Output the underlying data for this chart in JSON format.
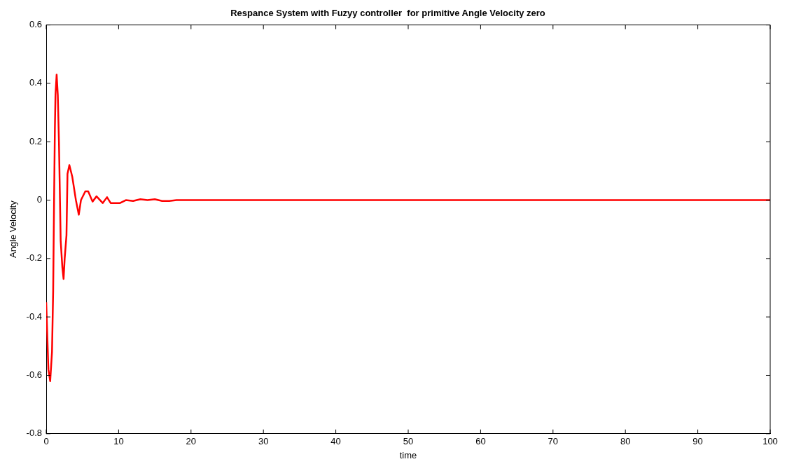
{
  "chart_data": {
    "type": "line",
    "title": "Respance System with Fuzyy controller  for primitive Angle Velocity zero",
    "xlabel": "time",
    "ylabel": "Angle Velocity",
    "x": [
      0,
      0.3,
      0.55,
      0.8,
      0.96,
      1.1,
      1.2,
      1.28,
      1.44,
      1.6,
      1.76,
      2.0,
      2.23,
      2.4,
      2.55,
      2.8,
      2.94,
      3.2,
      3.6,
      4.1,
      4.5,
      4.8,
      5.4,
      5.8,
      6.4,
      6.95,
      7.8,
      8.4,
      8.9,
      10.2,
      11,
      12,
      13,
      14,
      15,
      16,
      17,
      18,
      19,
      20,
      21,
      30,
      50,
      100
    ],
    "series": [
      {
        "color": "#ff0000",
        "values": [
          -0.35,
          -0.58,
          -0.62,
          -0.52,
          -0.31,
          0.03,
          0.25,
          0.36,
          0.43,
          0.36,
          0.2,
          -0.14,
          -0.23,
          -0.27,
          -0.2,
          -0.12,
          0.09,
          0.12,
          0.08,
          0,
          -0.05,
          0,
          0.03,
          0.03,
          -0.005,
          0.013,
          -0.01,
          0.01,
          -0.01,
          -0.01,
          0,
          -0.003,
          0.003,
          0,
          0.003,
          -0.003,
          -0.003,
          0,
          0,
          0,
          0,
          0,
          0,
          0
        ]
      }
    ],
    "xlim": [
      0,
      100
    ],
    "ylim": [
      -0.8,
      0.6
    ],
    "xticks": [
      0,
      10,
      20,
      30,
      40,
      50,
      60,
      70,
      80,
      90,
      100
    ],
    "yticks": [
      -0.8,
      -0.6,
      -0.4,
      -0.2,
      0,
      0.2,
      0.4,
      0.6
    ],
    "grid": false,
    "legend": false,
    "marker": "none",
    "line_style": "solid"
  }
}
